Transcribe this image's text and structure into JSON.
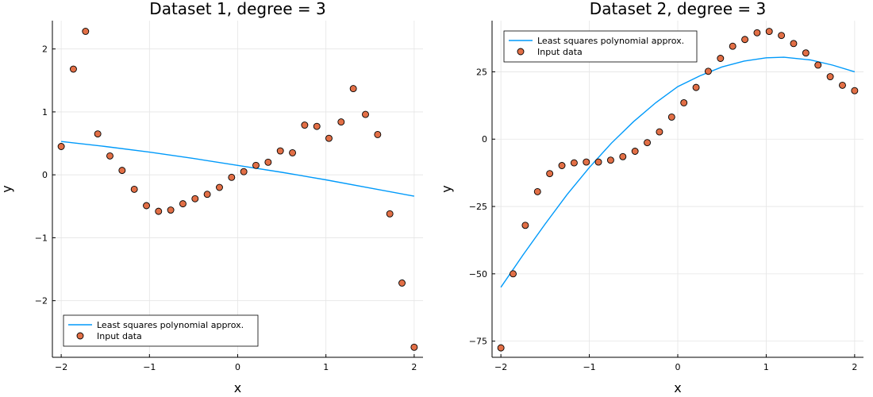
{
  "colors": {
    "fit_line": "#009AFA",
    "points": "#E26F46",
    "point_edge": "#000000",
    "grid": "#E5E5E5",
    "axis": "#000000"
  },
  "chart_data": [
    {
      "type": "scatter",
      "title": "Dataset 1, degree = 3",
      "xlabel": "x",
      "ylabel": "y",
      "xlim": [
        -2.1,
        2.1
      ],
      "ylim": [
        -2.9,
        2.45
      ],
      "xticks": [
        -2,
        -1,
        0,
        1,
        2
      ],
      "xtick_labels": [
        "−2",
        "−1",
        "0",
        "1",
        "2"
      ],
      "yticks": [
        -2,
        -1,
        0,
        1,
        2
      ],
      "ytick_labels": [
        "−2",
        "−1",
        "0",
        "1",
        "2"
      ],
      "grid": true,
      "legend_position": "bottom-left",
      "series": [
        {
          "name": "Least squares polynomial approx.",
          "kind": "line",
          "x": [
            -2.0,
            -1.5,
            -1.0,
            -0.5,
            0.0,
            0.5,
            1.0,
            1.5,
            2.0
          ],
          "y": [
            0.53,
            0.45,
            0.36,
            0.26,
            0.15,
            0.04,
            -0.08,
            -0.21,
            -0.34
          ]
        },
        {
          "name": "Input data",
          "kind": "scatter",
          "x": [
            -2.0,
            -1.862,
            -1.724,
            -1.586,
            -1.448,
            -1.31,
            -1.172,
            -1.034,
            -0.897,
            -0.759,
            -0.621,
            -0.483,
            -0.345,
            -0.207,
            -0.069,
            0.069,
            0.207,
            0.345,
            0.483,
            0.621,
            0.759,
            0.897,
            1.034,
            1.172,
            1.31,
            1.448,
            1.586,
            1.724,
            1.862,
            2.0
          ],
          "y": [
            0.45,
            1.68,
            2.28,
            0.65,
            0.3,
            0.07,
            -0.23,
            -0.49,
            -0.58,
            -0.56,
            -0.46,
            -0.38,
            -0.31,
            -0.2,
            -0.04,
            0.05,
            0.15,
            0.2,
            0.38,
            0.35,
            0.79,
            0.77,
            0.58,
            0.84,
            1.37,
            0.96,
            0.64,
            -0.62,
            -1.72,
            -2.74
          ]
        }
      ]
    },
    {
      "type": "scatter",
      "title": "Dataset 2, degree = 3",
      "xlabel": "x",
      "ylabel": "y",
      "xlim": [
        -2.1,
        2.1
      ],
      "ylim": [
        -81,
        44
      ],
      "xticks": [
        -2,
        -1,
        0,
        1,
        2
      ],
      "xtick_labels": [
        "−2",
        "−1",
        "0",
        "1",
        "2"
      ],
      "yticks": [
        -75,
        -50,
        -25,
        0,
        25
      ],
      "ytick_labels": [
        "−75",
        "−50",
        "−25",
        "0",
        "25"
      ],
      "grid": true,
      "legend_position": "top-left",
      "series": [
        {
          "name": "Least squares polynomial approx.",
          "kind": "line",
          "x": [
            -2.0,
            -1.75,
            -1.5,
            -1.25,
            -1.0,
            -0.75,
            -0.5,
            -0.25,
            0.0,
            0.25,
            0.5,
            0.75,
            1.0,
            1.2,
            1.5,
            1.75,
            2.0
          ],
          "y": [
            -55.0,
            -43.0,
            -31.5,
            -20.5,
            -10.5,
            -1.5,
            6.5,
            13.5,
            19.5,
            23.5,
            26.8,
            29.0,
            30.2,
            30.4,
            29.4,
            27.5,
            25.0
          ]
        },
        {
          "name": "Input data",
          "kind": "scatter",
          "x": [
            -2.0,
            -1.862,
            -1.724,
            -1.586,
            -1.448,
            -1.31,
            -1.172,
            -1.034,
            -0.897,
            -0.759,
            -0.621,
            -0.483,
            -0.345,
            -0.207,
            -0.069,
            0.069,
            0.207,
            0.345,
            0.483,
            0.621,
            0.759,
            0.897,
            1.034,
            1.172,
            1.31,
            1.448,
            1.586,
            1.724,
            1.862,
            2.0
          ],
          "y": [
            -77.5,
            -50.0,
            -32.0,
            -19.5,
            -12.8,
            -9.8,
            -8.8,
            -8.5,
            -8.5,
            -7.8,
            -6.5,
            -4.5,
            -1.3,
            2.7,
            8.2,
            13.5,
            19.2,
            25.2,
            30.0,
            34.5,
            37.0,
            39.5,
            40.0,
            38.5,
            35.5,
            32.0,
            27.5,
            23.2,
            20.0,
            18.0
          ]
        }
      ]
    }
  ]
}
